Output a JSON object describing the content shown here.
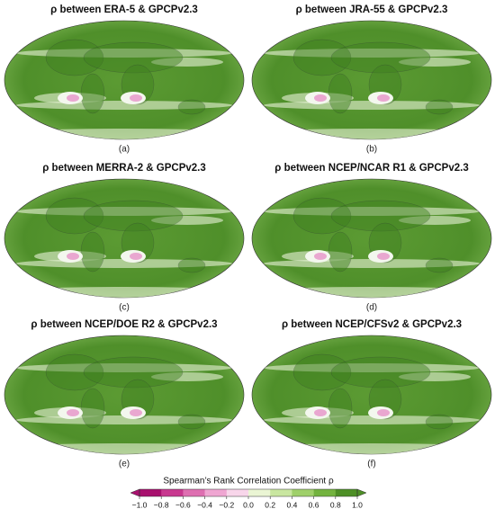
{
  "panels": [
    {
      "title": "ρ between ERA-5 & GPCPv2.3",
      "label": "(a)"
    },
    {
      "title": "ρ between JRA-55 & GPCPv2.3",
      "label": "(b)"
    },
    {
      "title": "ρ between MERRA-2 & GPCPv2.3",
      "label": "(c)"
    },
    {
      "title": "ρ between NCEP/NCAR R1 & GPCPv2.3",
      "label": "(d)"
    },
    {
      "title": "ρ between NCEP/DOE R2 & GPCPv2.3",
      "label": "(e)"
    },
    {
      "title": "ρ between NCEP/CFSv2 & GPCPv2.3",
      "label": "(f)"
    }
  ],
  "colorbar": {
    "label": "Spearman’s Rank Correlation Coefficient ρ",
    "range": [
      -1,
      1
    ],
    "ticks": [
      {
        "value": -1,
        "label": "−1.0"
      },
      {
        "value": -0.8,
        "label": "−0.8"
      },
      {
        "value": -0.6,
        "label": "−0.6"
      },
      {
        "value": -0.4,
        "label": "−0.4"
      },
      {
        "value": -0.2,
        "label": "−0.2"
      },
      {
        "value": 0,
        "label": "0.0"
      },
      0.2,
      0.4,
      0.6,
      0.8,
      {
        "value": 1,
        "label": "1.0"
      }
    ],
    "colors": [
      "#a8106e",
      "#c8388f",
      "#de6fb1",
      "#efa6d2",
      "#f8d6ea",
      "#eaf5d4",
      "#c9e6a0",
      "#9fd06a",
      "#73b33f",
      "#4d8f26"
    ],
    "extend": "both"
  }
}
